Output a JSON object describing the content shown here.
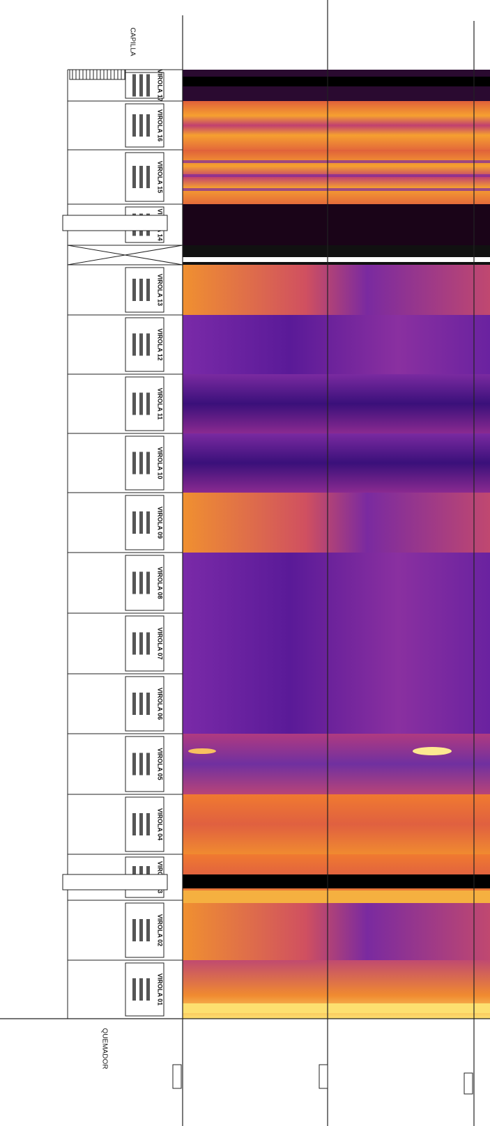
{
  "header": {
    "top_label": "CAPILLA",
    "bottom_label": "QUEMADOR"
  },
  "sections": [
    {
      "label": "VIROLA 17"
    },
    {
      "label": "VIROLA 16"
    },
    {
      "label": "VIROLA 15"
    },
    {
      "label": "VIROLA 14"
    },
    {
      "label": "VIROLA 13"
    },
    {
      "label": "VIROLA 12"
    },
    {
      "label": "VIROLA 11"
    },
    {
      "label": "VIROLA 10"
    },
    {
      "label": "VIROLA 09"
    },
    {
      "label": "VIROLA 08"
    },
    {
      "label": "VIROLA 07"
    },
    {
      "label": "VIROLA 06"
    },
    {
      "label": "VIROLA 05"
    },
    {
      "label": "VIROLA 04"
    },
    {
      "label": "VIROLA 03"
    },
    {
      "label": "VIROLA 02"
    },
    {
      "label": "VIROLA 01"
    }
  ]
}
